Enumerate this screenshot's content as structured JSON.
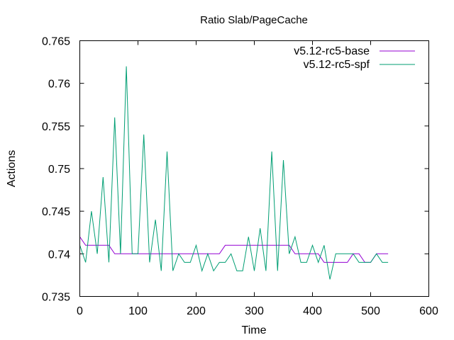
{
  "chart_data": {
    "type": "line",
    "title": "Ratio Slab/PageCache",
    "xlabel": "Time",
    "ylabel": "Actions",
    "xlim": [
      0,
      600
    ],
    "ylim": [
      0.735,
      0.765
    ],
    "xticks": [
      0,
      100,
      200,
      300,
      400,
      500,
      600
    ],
    "yticks": [
      0.735,
      0.74,
      0.745,
      0.75,
      0.755,
      0.76,
      0.765
    ],
    "xtick_labels": [
      "0",
      "100",
      "200",
      "300",
      "400",
      "500",
      "600"
    ],
    "ytick_labels": [
      "0.735",
      "0.74",
      "0.745",
      "0.75",
      "0.755",
      "0.76",
      "0.765"
    ],
    "grid": false,
    "legend_position": "top-right",
    "series": [
      {
        "name": "v5.12-rc5-base",
        "color": "#9400d3",
        "x": [
          0,
          10,
          20,
          30,
          40,
          50,
          60,
          70,
          80,
          90,
          100,
          110,
          120,
          130,
          140,
          150,
          160,
          170,
          180,
          190,
          200,
          210,
          220,
          230,
          240,
          250,
          260,
          270,
          280,
          290,
          300,
          310,
          320,
          330,
          340,
          350,
          360,
          370,
          380,
          390,
          400,
          410,
          420,
          430,
          440,
          450,
          460,
          470,
          480,
          490,
          500,
          510,
          520,
          530
        ],
        "y": [
          0.742,
          0.741,
          0.741,
          0.741,
          0.741,
          0.741,
          0.74,
          0.74,
          0.74,
          0.74,
          0.74,
          0.74,
          0.74,
          0.74,
          0.74,
          0.74,
          0.74,
          0.74,
          0.74,
          0.74,
          0.74,
          0.74,
          0.74,
          0.74,
          0.74,
          0.741,
          0.741,
          0.741,
          0.741,
          0.741,
          0.741,
          0.741,
          0.741,
          0.741,
          0.741,
          0.741,
          0.741,
          0.74,
          0.74,
          0.74,
          0.74,
          0.74,
          0.739,
          0.739,
          0.739,
          0.739,
          0.739,
          0.74,
          0.74,
          0.739,
          0.739,
          0.74,
          0.74,
          0.74
        ]
      },
      {
        "name": "v5.12-rc5-spf",
        "color": "#009e73",
        "x": [
          0,
          10,
          20,
          30,
          40,
          50,
          60,
          70,
          80,
          90,
          100,
          110,
          120,
          130,
          140,
          150,
          160,
          170,
          180,
          190,
          200,
          210,
          220,
          230,
          240,
          250,
          260,
          270,
          280,
          290,
          300,
          310,
          320,
          330,
          340,
          350,
          360,
          370,
          380,
          390,
          400,
          410,
          420,
          430,
          440,
          450,
          460,
          470,
          480,
          490,
          500,
          510,
          520,
          530
        ],
        "y": [
          0.741,
          0.739,
          0.745,
          0.74,
          0.749,
          0.739,
          0.756,
          0.74,
          0.762,
          0.74,
          0.74,
          0.754,
          0.739,
          0.744,
          0.738,
          0.752,
          0.738,
          0.74,
          0.739,
          0.739,
          0.741,
          0.738,
          0.74,
          0.738,
          0.739,
          0.739,
          0.74,
          0.738,
          0.738,
          0.742,
          0.738,
          0.743,
          0.738,
          0.752,
          0.738,
          0.751,
          0.74,
          0.742,
          0.739,
          0.739,
          0.741,
          0.739,
          0.741,
          0.737,
          0.74,
          0.74,
          0.74,
          0.74,
          0.739,
          0.739,
          0.739,
          0.74,
          0.739,
          0.739
        ]
      }
    ]
  }
}
